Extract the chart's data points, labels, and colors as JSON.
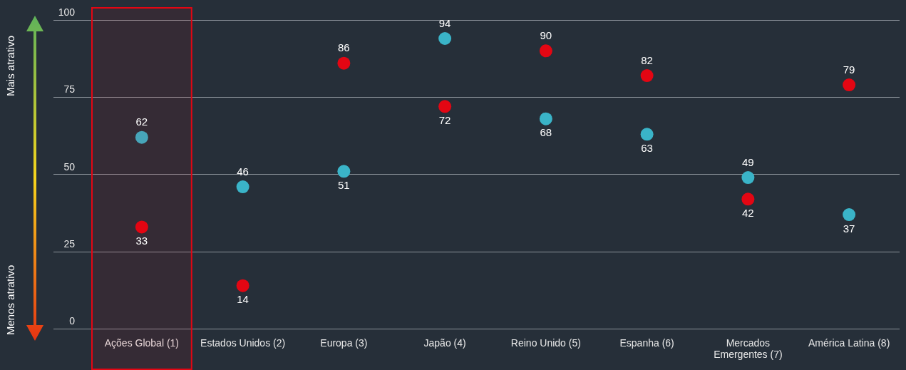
{
  "chart_data": {
    "type": "scatter",
    "categories": [
      "Ações Global (1)",
      "Estados Unidos (2)",
      "Europa (3)",
      "Japão (4)",
      "Reino Unido (5)",
      "Espanha (6)",
      "Mercados Emergentes (7)",
      "América Latina (8)"
    ],
    "series": [
      {
        "color": "#3ab4c8",
        "values": [
          62,
          46,
          51,
          94,
          68,
          63,
          49,
          37
        ]
      },
      {
        "color": "#e30613",
        "values": [
          33,
          14,
          86,
          72,
          90,
          82,
          42,
          79
        ]
      }
    ],
    "bands": [
      {
        "axis": "x",
        "from": "Ações Global (1)",
        "to": "Ações Global (1)",
        "color": "#e30613"
      }
    ],
    "ylim": [
      0,
      100
    ],
    "yticks": [
      0,
      25,
      50,
      75,
      100
    ],
    "grid": "y",
    "marker": "circle",
    "data_labels": true,
    "annotations": [
      "Mais atrativo",
      "Menos atrativo"
    ]
  }
}
